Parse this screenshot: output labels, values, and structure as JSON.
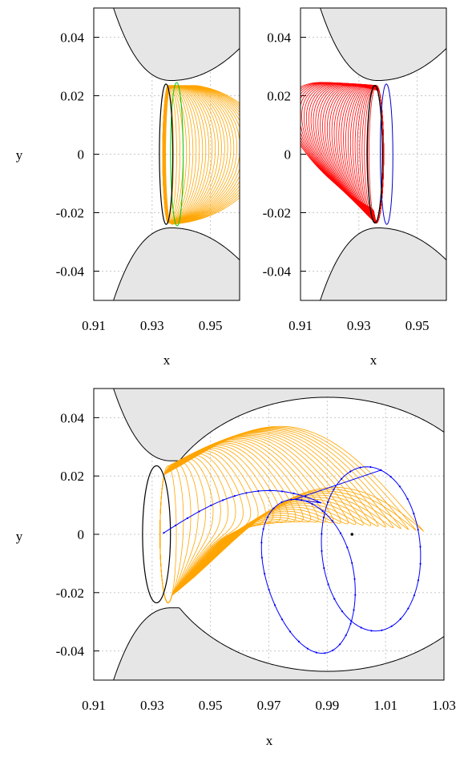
{
  "chart_data": [
    {
      "id": "top-left",
      "type": "line",
      "xlabel": "x",
      "ylabel": "y",
      "xlim": [
        0.91,
        0.96
      ],
      "ylim": [
        -0.05,
        0.05
      ],
      "xticks": [
        "0.91",
        "0.93",
        "0.95"
      ],
      "yticks": [
        "-0.04",
        "-0.02",
        "0",
        "0.02",
        "0.04"
      ],
      "grid": true,
      "series": [
        {
          "color": "#ffa500",
          "kind": "family of orbits"
        },
        {
          "color": "#00cc00",
          "kind": "closed orbit"
        },
        {
          "color": "#000000",
          "kind": "closed orbit"
        }
      ],
      "forbidden_region_color": "#e6e6e6"
    },
    {
      "id": "top-right",
      "type": "line",
      "xlabel": "x",
      "ylabel": "",
      "xlim": [
        0.91,
        0.96
      ],
      "ylim": [
        -0.05,
        0.05
      ],
      "xticks": [
        "0.91",
        "0.93",
        "0.95"
      ],
      "yticks": [
        "-0.04",
        "-0.02",
        "0",
        "0.02",
        "0.04"
      ],
      "grid": true,
      "series": [
        {
          "color": "#ff0000",
          "kind": "family of orbits"
        },
        {
          "color": "#0000cc",
          "kind": "closed orbit"
        },
        {
          "color": "#000000",
          "kind": "closed orbit"
        }
      ],
      "forbidden_region_color": "#e6e6e6"
    },
    {
      "id": "bottom",
      "type": "line",
      "xlabel": "x",
      "ylabel": "y",
      "xlim": [
        0.91,
        1.03
      ],
      "ylim": [
        -0.05,
        0.05
      ],
      "xticks": [
        "0.91",
        "0.93",
        "0.95",
        "0.97",
        "0.99",
        "1.01",
        "1.03"
      ],
      "yticks": [
        "-0.04",
        "-0.02",
        "0",
        "0.02",
        "0.04"
      ],
      "grid": true,
      "series": [
        {
          "color": "#ffa500",
          "kind": "family of orbits"
        },
        {
          "color": "#0000ff",
          "kind": "trajectory with markers"
        },
        {
          "color": "#000000",
          "kind": "closed orbit"
        }
      ],
      "marked_point": {
        "x": 0.9985,
        "y": 0.0
      },
      "forbidden_region_color": "#e6e6e6"
    }
  ]
}
